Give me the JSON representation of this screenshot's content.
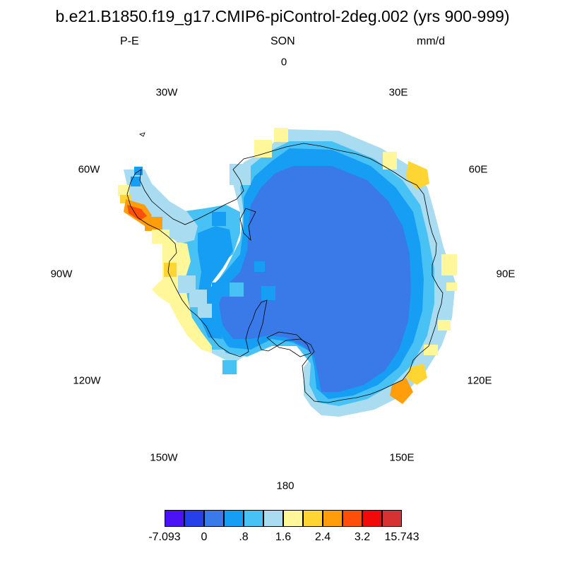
{
  "title": "b.e21.B1850.f19_g17.CMIP6-piControl-2deg.002 (yrs 900-999)",
  "left_string": "P-E",
  "center_string": "SON",
  "right_string": "mm/d",
  "longitude_labels": [
    "0",
    "30E",
    "60E",
    "90E",
    "120E",
    "150E",
    "180",
    "150W",
    "120W",
    "90W",
    "60W",
    "30W"
  ],
  "colorbar": {
    "colors": [
      "#4a12f5",
      "#2540e8",
      "#3a7ae8",
      "#169ef5",
      "#48c2f5",
      "#a9dcf0",
      "#fff79a",
      "#ffd534",
      "#ff9e0a",
      "#ff4e0a",
      "#f00a0a",
      "#d63232"
    ],
    "labels": [
      "-7.093",
      "0",
      ".8",
      "1.6",
      "2.4",
      "3.2",
      "15.743"
    ]
  },
  "chart_data": {
    "type": "heatmap",
    "projection": "south-polar-stereographic",
    "variable": "P-E",
    "season": "SON",
    "units": "mm/d",
    "levels_labeled": [
      "-7.093",
      "0",
      ".8",
      "1.6",
      "2.4",
      "3.2",
      "15.743"
    ],
    "interior_value_range": "0 to .8",
    "coastal_maxima_regions": [
      "Antarctic Peninsula west coast",
      "East Antarctic coast near 120E"
    ]
  }
}
